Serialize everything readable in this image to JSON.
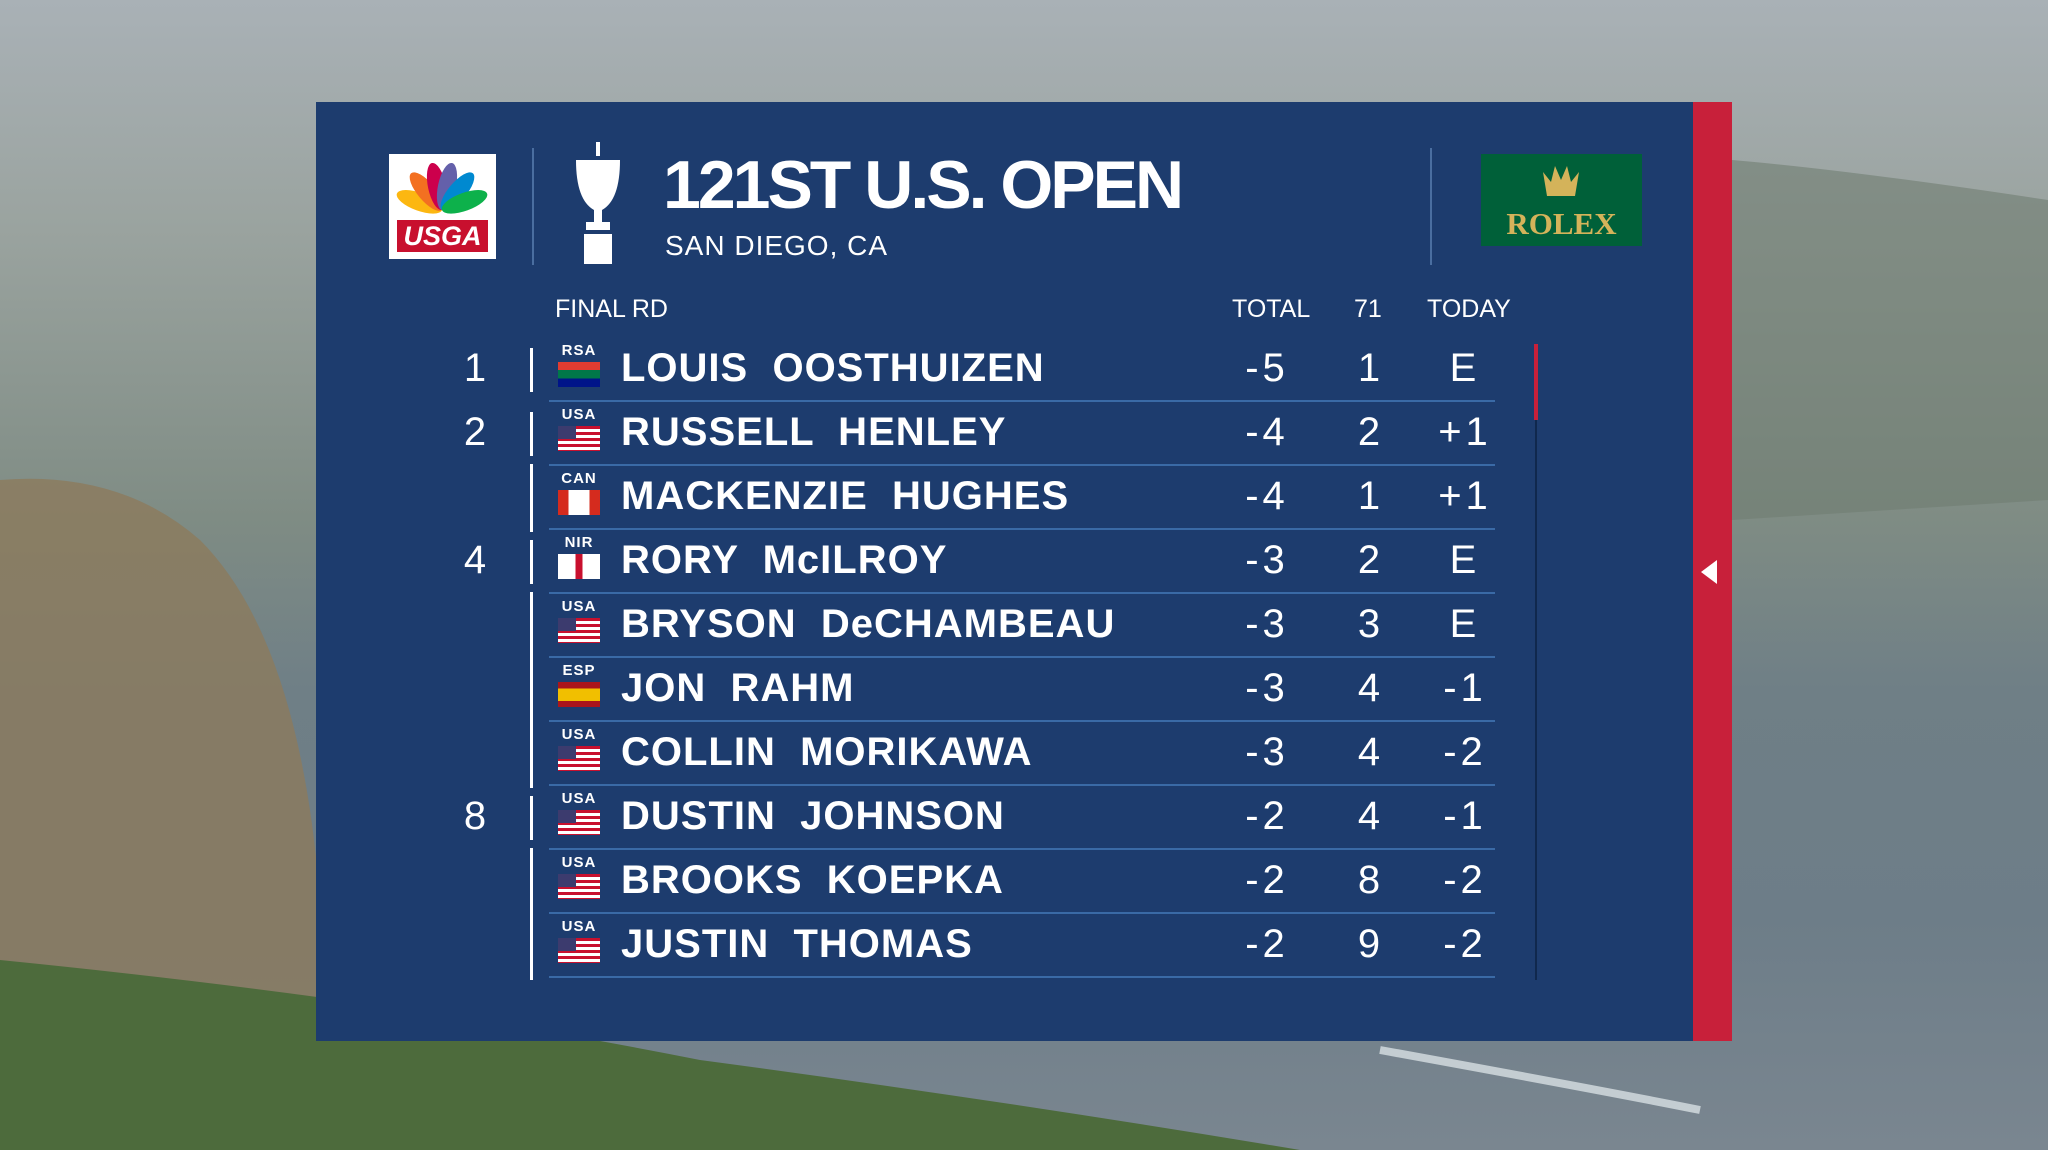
{
  "header": {
    "logo_left": "USGA",
    "title": "121ST U.S. OPEN",
    "subtitle": "SAN DIEGO, CA",
    "logo_right": "ROLEX"
  },
  "table": {
    "columns": [
      "FINAL RD",
      "TOTAL",
      "71",
      "TODAY"
    ],
    "rows": [
      {
        "pos": 1,
        "country": "RSA",
        "name": "LOUIS  OOSTHUIZEN",
        "total": -5,
        "thru": 1,
        "today": "E"
      },
      {
        "pos": 2,
        "country": "USA",
        "name": "RUSSELL  HENLEY",
        "total": -4,
        "thru": 2,
        "today": "+1"
      },
      {
        "country": "CAN",
        "name": "MACKENZIE  HUGHES",
        "total": -4,
        "thru": 1,
        "today": "+1"
      },
      {
        "pos": 4,
        "country": "NIR",
        "name": "RORY  McILROY",
        "total": -3,
        "thru": 2,
        "today": "E"
      },
      {
        "country": "USA",
        "name": "BRYSON  DeCHAMBEAU",
        "total": -3,
        "thru": 3,
        "today": "E"
      },
      {
        "country": "ESP",
        "name": "JON  RAHM",
        "total": -3,
        "thru": 4,
        "today": "-1"
      },
      {
        "country": "USA",
        "name": "COLLIN  MORIKAWA",
        "total": -3,
        "thru": 4,
        "today": "-2"
      },
      {
        "pos": 8,
        "country": "USA",
        "name": "DUSTIN  JOHNSON",
        "total": -2,
        "thru": 4,
        "today": "-1"
      },
      {
        "country": "USA",
        "name": "BROOKS  KOEPKA",
        "total": -2,
        "thru": 8,
        "today": "-2"
      },
      {
        "country": "USA",
        "name": "JUSTIN  THOMAS",
        "total": -2,
        "thru": 9,
        "today": "-2"
      }
    ]
  }
}
